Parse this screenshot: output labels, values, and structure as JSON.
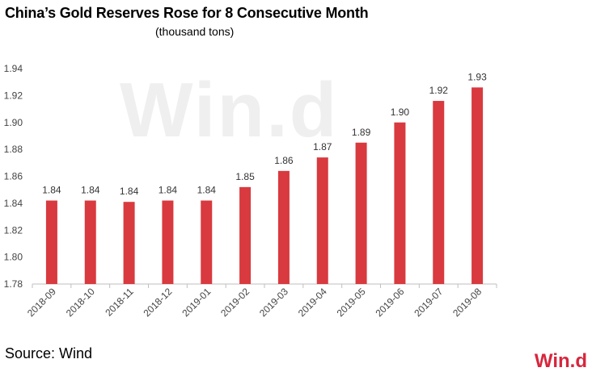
{
  "title": "China’s Gold Reserves Rose for 8 Consecutive Month",
  "subtitle": "(thousand  tons)",
  "source": "Source: Wind",
  "watermark": "Win.d",
  "logo": "Win.d",
  "bar_color": "#d83a3f",
  "chart_data": {
    "type": "bar",
    "title": "China’s Gold Reserves Rose for 8 Consecutive Month",
    "subtitle": "(thousand  tons)",
    "categories": [
      "2018-09",
      "2018-10",
      "2018-11",
      "2018-12",
      "2019-01",
      "2019-02",
      "2019-03",
      "2019-04",
      "2019-05",
      "2019-06",
      "2019-07",
      "2019-08"
    ],
    "values": [
      1.842,
      1.842,
      1.841,
      1.842,
      1.842,
      1.852,
      1.864,
      1.874,
      1.885,
      1.9,
      1.916,
      1.926
    ],
    "value_labels": [
      "1.84",
      "1.84",
      "1.84",
      "1.84",
      "1.84",
      "1.85",
      "1.86",
      "1.87",
      "1.89",
      "1.90",
      "1.92",
      "1.93"
    ],
    "ylim": [
      1.78,
      1.94
    ],
    "yticks": [
      "1.78",
      "1.80",
      "1.82",
      "1.84",
      "1.86",
      "1.88",
      "1.90",
      "1.92",
      "1.94"
    ],
    "grid": false,
    "legend": "none"
  }
}
